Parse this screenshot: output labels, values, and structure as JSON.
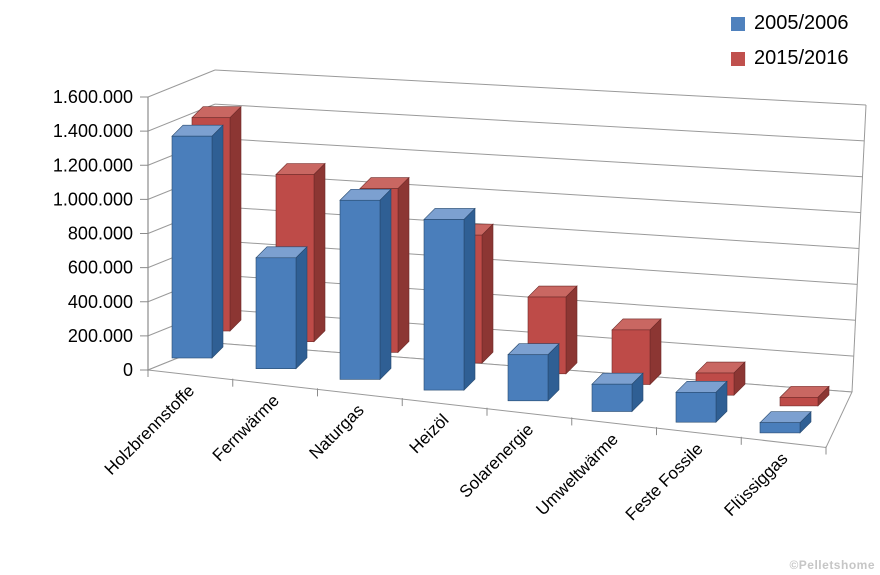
{
  "watermark": "©Pelletshome",
  "legend": {
    "position": "top-right",
    "items": [
      {
        "label": "2005/2006",
        "color": "#4F81BD"
      },
      {
        "label": "2015/2016",
        "color": "#C0504D"
      }
    ]
  },
  "chart_data": {
    "type": "bar",
    "projection": "3d-column",
    "title": "",
    "xlabel": "",
    "ylabel": "",
    "grid": true,
    "legend_position": "top-right",
    "categories": [
      "Holzbrennstoffe",
      "Fernwärme",
      "Naturgas",
      "Heizöl",
      "Solarenergie",
      "Umweltwärme",
      "Feste Fossile",
      "Flüssiggas"
    ],
    "series": [
      {
        "name": "2005/2006",
        "color": "#4F81BD",
        "values": [
          1300000,
          650000,
          1050000,
          1000000,
          270000,
          160000,
          175000,
          60000
        ]
      },
      {
        "name": "2015/2016",
        "color": "#C0504D",
        "values": [
          1250000,
          980000,
          960000,
          750000,
          450000,
          320000,
          130000,
          50000
        ]
      }
    ],
    "ylim": [
      0,
      1600000
    ],
    "y_step": 200000,
    "y_ticks": [
      "0",
      "200.000",
      "400.000",
      "600.000",
      "800.000",
      "1.000.000",
      "1.200.000",
      "1.400.000",
      "1.600.000"
    ]
  }
}
